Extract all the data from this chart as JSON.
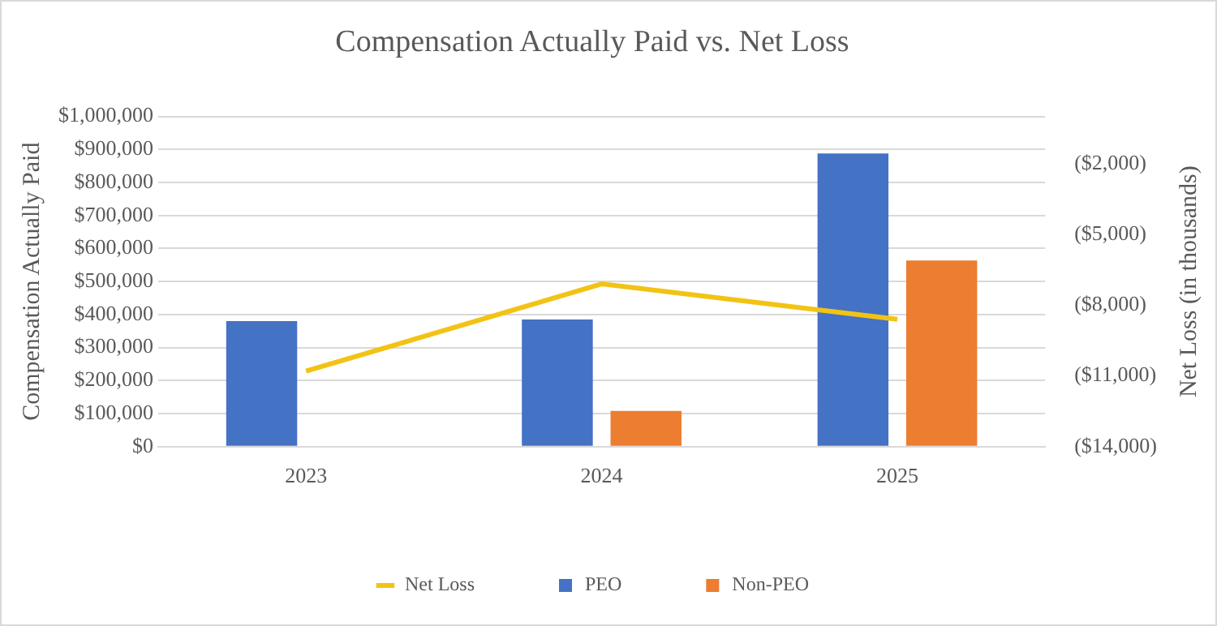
{
  "chart_data": {
    "type": "bar",
    "title": "Compensation Actually Paid vs. Net Loss",
    "ylabel": "Compensation Actually Paid",
    "y2label": "Net Loss (in thousands)",
    "categories": [
      "2023",
      "2024",
      "2025"
    ],
    "series": [
      {
        "name": "PEO",
        "color": "#4472c4",
        "values": [
          380000,
          385000,
          888000
        ]
      },
      {
        "name": "Non-PEO",
        "color": "#ed7d31",
        "values": [
          null,
          108000,
          564000
        ]
      },
      {
        "name": "Net Loss",
        "type": "line",
        "axis": "y2",
        "color": "#f2c314",
        "values": [
          -10800,
          -7100,
          -8600
        ]
      }
    ],
    "ylim": [
      0,
      1000000
    ],
    "yticks": [
      {
        "value": 0,
        "label": "$0"
      },
      {
        "value": 100000,
        "label": "$100,000"
      },
      {
        "value": 200000,
        "label": "$200,000"
      },
      {
        "value": 300000,
        "label": "$300,000"
      },
      {
        "value": 400000,
        "label": "$400,000"
      },
      {
        "value": 500000,
        "label": "$500,000"
      },
      {
        "value": 600000,
        "label": "$600,000"
      },
      {
        "value": 700000,
        "label": "$700,000"
      },
      {
        "value": 800000,
        "label": "$800,000"
      },
      {
        "value": 900000,
        "label": "$900,000"
      },
      {
        "value": 1000000,
        "label": "$1,000,000"
      }
    ],
    "y2lim": [
      -14000,
      0
    ],
    "y2ticks": [
      {
        "value": -14000,
        "label": "($14,000)"
      },
      {
        "value": -11000,
        "label": "($11,000)"
      },
      {
        "value": -8000,
        "label": "($8,000)"
      },
      {
        "value": -5000,
        "label": "($5,000)"
      },
      {
        "value": -2000,
        "label": "($2,000)"
      }
    ],
    "grid": "y",
    "legend": "bottom",
    "marker": "none"
  }
}
